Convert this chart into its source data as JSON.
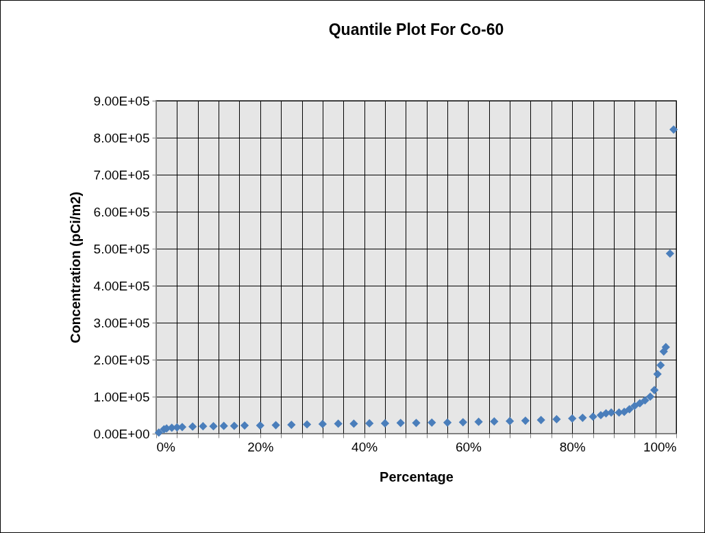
{
  "chart_data": {
    "type": "scatter",
    "title": "Quantile Plot For Co-60",
    "xlabel": "Percentage",
    "ylabel": "Concentration (pCi/m2)",
    "marker": "diamond",
    "grid": true,
    "xlim": [
      0,
      100
    ],
    "ylim": [
      0,
      900000
    ],
    "xticks": [
      {
        "value": 0,
        "label": "0%"
      },
      {
        "value": 4,
        "label": null
      },
      {
        "value": 8,
        "label": null
      },
      {
        "value": 12,
        "label": null
      },
      {
        "value": 16,
        "label": null
      },
      {
        "value": 20,
        "label": "20%"
      },
      {
        "value": 24,
        "label": null
      },
      {
        "value": 28,
        "label": null
      },
      {
        "value": 32,
        "label": null
      },
      {
        "value": 36,
        "label": null
      },
      {
        "value": 40,
        "label": "40%"
      },
      {
        "value": 44,
        "label": null
      },
      {
        "value": 48,
        "label": null
      },
      {
        "value": 52,
        "label": null
      },
      {
        "value": 56,
        "label": null
      },
      {
        "value": 60,
        "label": "60%"
      },
      {
        "value": 64,
        "label": null
      },
      {
        "value": 68,
        "label": null
      },
      {
        "value": 72,
        "label": null
      },
      {
        "value": 76,
        "label": null
      },
      {
        "value": 80,
        "label": "80%"
      },
      {
        "value": 84,
        "label": null
      },
      {
        "value": 88,
        "label": null
      },
      {
        "value": 92,
        "label": null
      },
      {
        "value": 96,
        "label": null
      },
      {
        "value": 100,
        "label": "100%"
      }
    ],
    "yticks": [
      {
        "value": 0,
        "label": "0.00E+00"
      },
      {
        "value": 100000,
        "label": "1.00E+05"
      },
      {
        "value": 200000,
        "label": "2.00E+05"
      },
      {
        "value": 300000,
        "label": "3.00E+05"
      },
      {
        "value": 400000,
        "label": "4.00E+05"
      },
      {
        "value": 500000,
        "label": "5.00E+05"
      },
      {
        "value": 600000,
        "label": "6.00E+05"
      },
      {
        "value": 700000,
        "label": "7.00E+05"
      },
      {
        "value": 800000,
        "label": "8.00E+05"
      },
      {
        "value": 900000,
        "label": "9.00E+05"
      }
    ],
    "x": [
      0.5,
      1.5,
      2,
      3,
      4,
      5,
      7,
      9,
      11,
      13,
      15,
      17,
      20,
      23,
      26,
      29,
      32,
      35,
      38,
      41,
      44,
      47,
      50,
      53,
      56,
      59,
      62,
      65,
      68,
      71,
      74,
      77,
      80,
      82,
      84,
      85.5,
      86.5,
      87.5,
      89,
      90,
      91,
      92,
      93,
      94,
      95,
      95.8,
      96.4,
      97,
      97.6,
      98,
      98.8,
      99.5
    ],
    "series": [
      {
        "color": "#4a7ebb",
        "values": [
          3000,
          12000,
          14000,
          16000,
          17000,
          18000,
          19000,
          20000,
          20000,
          21000,
          21000,
          22000,
          22000,
          23000,
          24000,
          25000,
          26000,
          27000,
          27000,
          28000,
          28000,
          29000,
          29000,
          30000,
          30000,
          31000,
          32000,
          33000,
          34000,
          35000,
          37000,
          39000,
          41000,
          43000,
          46000,
          50000,
          55000,
          57000,
          57000,
          59000,
          66000,
          75000,
          82000,
          90000,
          100000,
          118000,
          161000,
          185000,
          222000,
          234000,
          487000,
          822000
        ]
      }
    ]
  }
}
